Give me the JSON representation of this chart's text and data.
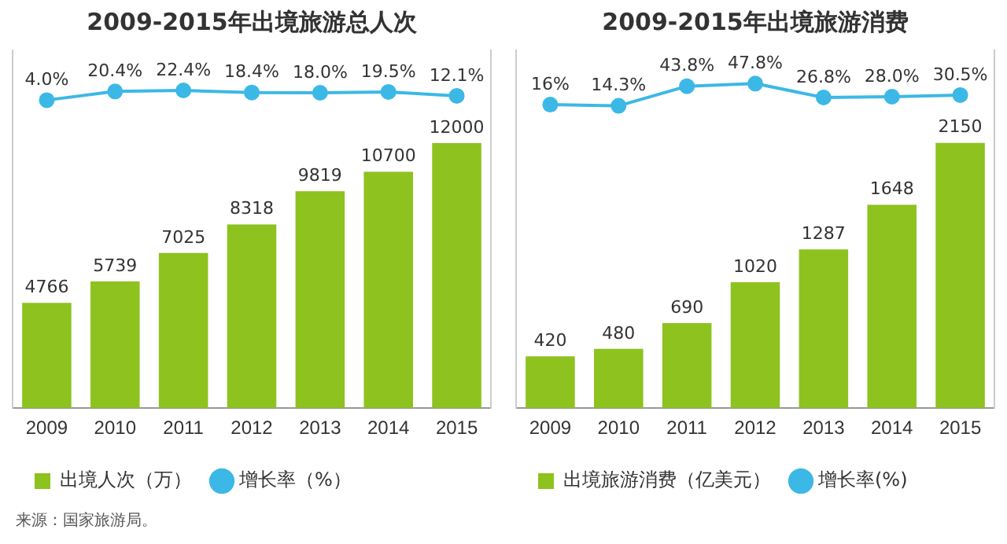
{
  "chart_data": [
    {
      "type": "bar",
      "title": "2009-2015年出境旅游总人次",
      "categories": [
        "2009",
        "2010",
        "2011",
        "2012",
        "2013",
        "2014",
        "2015"
      ],
      "series": [
        {
          "name": "出境人次（万）",
          "color": "#8dc21f",
          "values": [
            4766,
            5739,
            7025,
            8318,
            9819,
            10700,
            12000
          ],
          "value_labels": [
            "4766",
            "5739",
            "7025",
            "8318",
            "9819",
            "10700",
            "12000"
          ]
        },
        {
          "name": "增长率（%）",
          "type": "line",
          "axis": "y2",
          "color": "#3cb8e6",
          "values": [
            4.0,
            20.4,
            22.4,
            18.4,
            18.0,
            19.5,
            12.1
          ],
          "value_labels": [
            "4.0%",
            "20.4%",
            "22.4%",
            "18.4%",
            "18.0%",
            "19.5%",
            "12.1%"
          ]
        }
      ],
      "ylim": [
        0,
        16200
      ],
      "y2lim": [
        -577,
        98
      ],
      "grid": false,
      "legend": "bottom",
      "tick_labels": "x",
      "marker": "circle",
      "annotations": [
        "来源：国家旅游局。"
      ]
    },
    {
      "type": "bar",
      "title": "2009-2015年出境旅游消费",
      "categories": [
        "2009",
        "2010",
        "2011",
        "2012",
        "2013",
        "2014",
        "2015"
      ],
      "series": [
        {
          "name": "出境旅游消费（亿美元）",
          "color": "#8dc21f",
          "values": [
            420,
            480,
            690,
            1020,
            1287,
            1648,
            2150
          ],
          "value_labels": [
            "420",
            "480",
            "690",
            "1020",
            "1287",
            "1648",
            "2150"
          ]
        },
        {
          "name": "增长率(%)",
          "type": "line",
          "axis": "y2",
          "color": "#3cb8e6",
          "values": [
            16,
            14.3,
            43.8,
            47.8,
            26.8,
            28.0,
            30.5
          ],
          "value_labels": [
            "16%",
            "14.3%",
            "43.8%",
            "47.8%",
            "26.8%",
            "28.0%",
            "30.5%"
          ]
        }
      ],
      "ylim": [
        0,
        2900
      ],
      "y2lim": [
        -442,
        98
      ],
      "grid": false,
      "legend": "bottom",
      "tick_labels": "x",
      "marker": "circle"
    }
  ]
}
